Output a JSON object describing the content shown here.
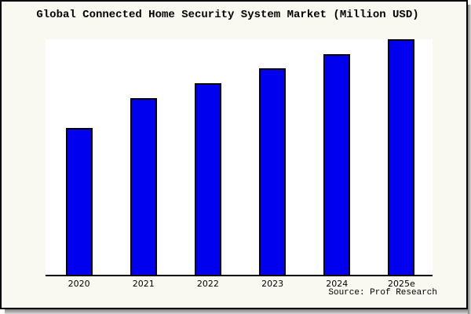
{
  "chart_data": {
    "type": "bar",
    "title": "Global Connected Home Security System Market (Million USD)",
    "categories": [
      "2020",
      "2021",
      "2022",
      "2023",
      "2024",
      "2025e"
    ],
    "values": [
      187,
      225,
      244,
      263,
      281,
      300
    ],
    "value_units": "relative (no y-axis labels shown; values estimated from bar heights)",
    "xlabel": "",
    "ylabel": "",
    "ylim": [
      0,
      300
    ],
    "grid": false,
    "legend": null,
    "bar_color": "#0000ee",
    "bar_edge_color": "#000000",
    "background_color": "#f9f9f1",
    "plot_background": "#ffffff",
    "source_label": "Source: Prof Research"
  }
}
